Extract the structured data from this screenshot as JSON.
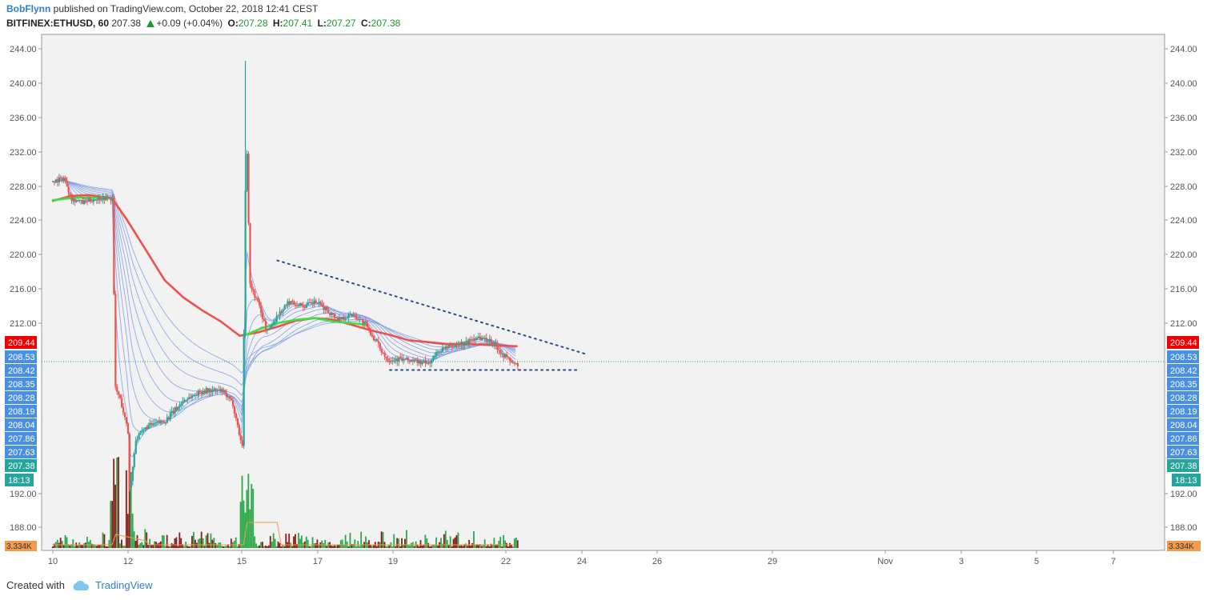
{
  "header": {
    "author": "BobFlynn",
    "published_text": "published on TradingView.com, October 22, 2018 12:41 CEST",
    "symbol": "BITFINEX:ETHUSD, 60",
    "price": "207.38",
    "change": "+0.09 (+0.04%)",
    "open_label": "O:",
    "open": "207.28",
    "high_label": "H:",
    "high": "207.41",
    "low_label": "L:",
    "low": "207.27",
    "close_label": "C:",
    "close": "207.38"
  },
  "footer": {
    "created_with": "Created with",
    "brand": "TradingView"
  },
  "colors": {
    "background": "#f2f2f2",
    "grid": "#e4e4e4",
    "candle_up": "#26a69a",
    "candle_down": "#ef5350",
    "ema_ribbon": "#7f9ee8",
    "ema_slow": "#f0504a",
    "ema_fast_green": "#3fe03f",
    "trendline": "#2a4b8d",
    "price_line": "#26a69a",
    "label_red": "#f00000",
    "label_blue": "#4a90e2",
    "label_green": "#26a69a",
    "label_orange": "#f29b4c"
  },
  "chart_data": {
    "type": "candlestick",
    "symbol": "BITFINEX:ETHUSD",
    "interval": "60",
    "grid": false,
    "y_axis_ticks": [
      "244.00",
      "240.00",
      "236.00",
      "232.00",
      "228.00",
      "224.00",
      "220.00",
      "216.00",
      "212.00",
      "192.00",
      "188.00"
    ],
    "x_axis_ticks": [
      "10",
      "12",
      "15",
      "17",
      "19",
      "22",
      "24",
      "26",
      "29",
      "Nov",
      "3",
      "5",
      "7"
    ],
    "price_labels": [
      {
        "value": "209.44",
        "kind": "ema-slow",
        "color": "#f00000"
      },
      {
        "value": "208.53",
        "kind": "ema",
        "color": "#4a90e2"
      },
      {
        "value": "208.42",
        "kind": "ema",
        "color": "#4a90e2"
      },
      {
        "value": "208.35",
        "kind": "ema",
        "color": "#4a90e2"
      },
      {
        "value": "208.28",
        "kind": "ema",
        "color": "#4a90e2"
      },
      {
        "value": "208.19",
        "kind": "ema",
        "color": "#4a90e2"
      },
      {
        "value": "208.04",
        "kind": "ema",
        "color": "#4a90e2"
      },
      {
        "value": "207.86",
        "kind": "ema",
        "color": "#4a90e2"
      },
      {
        "value": "207.63",
        "kind": "ema",
        "color": "#4a90e2"
      },
      {
        "value": "207.38",
        "kind": "last",
        "color": "#26a69a"
      }
    ],
    "countdown_label": "18:13",
    "volume_label": "3.334K",
    "price_path": [
      [
        10.0,
        228.5
      ],
      [
        10.3,
        228.9
      ],
      [
        10.5,
        226.5
      ],
      [
        10.8,
        226.0
      ],
      [
        11.0,
        226.3
      ],
      [
        11.3,
        226.6
      ],
      [
        11.6,
        226.5
      ],
      [
        11.65,
        205.0
      ],
      [
        11.8,
        203.5
      ],
      [
        12.0,
        200.0
      ],
      [
        12.05,
        193.0
      ],
      [
        12.2,
        199.0
      ],
      [
        12.5,
        200.5
      ],
      [
        13.0,
        201.2
      ],
      [
        13.5,
        203.5
      ],
      [
        14.0,
        204.5
      ],
      [
        14.5,
        204.5
      ],
      [
        14.8,
        203.0
      ],
      [
        15.0,
        199.0
      ],
      [
        15.05,
        198.5
      ],
      [
        15.1,
        215.0
      ],
      [
        15.15,
        236.0
      ],
      [
        15.25,
        216.5
      ],
      [
        15.5,
        214.0
      ],
      [
        15.7,
        211.0
      ],
      [
        16.0,
        213.0
      ],
      [
        16.3,
        214.5
      ],
      [
        16.7,
        214.0
      ],
      [
        17.0,
        214.5
      ],
      [
        17.3,
        213.5
      ],
      [
        17.6,
        212.5
      ],
      [
        18.0,
        213.0
      ],
      [
        18.3,
        212.0
      ],
      [
        18.6,
        210.0
      ],
      [
        18.9,
        208.0
      ],
      [
        19.2,
        208.0
      ],
      [
        19.6,
        207.8
      ],
      [
        20.0,
        207.5
      ],
      [
        20.3,
        209.0
      ],
      [
        20.7,
        209.5
      ],
      [
        21.0,
        209.8
      ],
      [
        21.3,
        210.5
      ],
      [
        21.7,
        210.0
      ],
      [
        22.0,
        208.5
      ],
      [
        22.3,
        207.4
      ]
    ],
    "ema_slow_path": [
      [
        10.0,
        226.2
      ],
      [
        10.5,
        226.8
      ],
      [
        11.0,
        226.9
      ],
      [
        11.6,
        226.5
      ],
      [
        12.0,
        224.0
      ],
      [
        12.5,
        220.5
      ],
      [
        13.0,
        217.0
      ],
      [
        13.5,
        215.0
      ],
      [
        14.0,
        213.5
      ],
      [
        14.5,
        212.2
      ],
      [
        15.0,
        210.6
      ],
      [
        15.5,
        211.0
      ],
      [
        16.0,
        211.6
      ],
      [
        16.5,
        212.3
      ],
      [
        17.0,
        212.6
      ],
      [
        17.5,
        212.4
      ],
      [
        18.0,
        211.8
      ],
      [
        18.5,
        211.2
      ],
      [
        19.0,
        210.7
      ],
      [
        19.5,
        210.1
      ],
      [
        20.0,
        209.9
      ],
      [
        20.5,
        209.7
      ],
      [
        21.0,
        209.7
      ],
      [
        21.5,
        209.6
      ],
      [
        22.0,
        209.5
      ],
      [
        22.4,
        209.44
      ]
    ],
    "ema_fast_green_path": [
      [
        10.0,
        226.3
      ],
      [
        10.6,
        226.6
      ],
      [
        11.1,
        226.6
      ],
      [
        11.6,
        226.5
      ]
    ],
    "ema_fast_green_path_2": [
      [
        15.1,
        210.6
      ],
      [
        15.5,
        211.3
      ],
      [
        16.0,
        212.0
      ],
      [
        16.5,
        212.4
      ],
      [
        17.0,
        212.6
      ],
      [
        17.5,
        212.2
      ],
      [
        18.0,
        212.0
      ],
      [
        18.4,
        211.8
      ]
    ],
    "resistance_trendline": {
      "from": [
        16.0,
        219.3
      ],
      "to": [
        24.2,
        208.6
      ]
    },
    "support_line": {
      "from": [
        19.0,
        206.8
      ],
      "to": [
        24.0,
        206.8
      ]
    },
    "last_price": 207.38
  }
}
